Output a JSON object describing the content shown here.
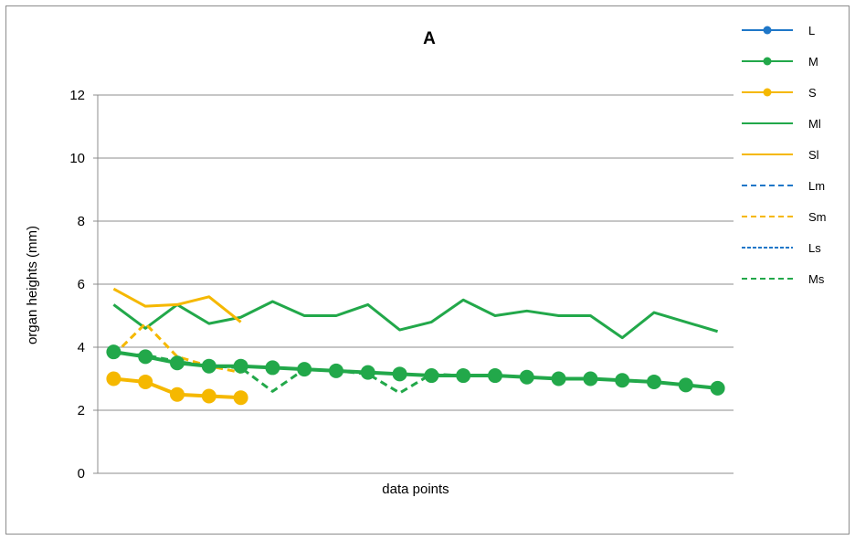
{
  "chart_data": {
    "type": "line",
    "title": "A",
    "xlabel": "data points",
    "ylabel": "organ heights (mm)",
    "ylim": [
      0,
      12
    ],
    "yticks": [
      0,
      2,
      4,
      6,
      8,
      10,
      12
    ],
    "y_tick_labels": [
      "0",
      "2",
      "4",
      "6",
      "8",
      "10",
      "12"
    ],
    "x_count": 20,
    "grid": "horizontal",
    "legend_position": "right",
    "series": [
      {
        "name": "L",
        "color": "#1f77c8",
        "style": "solid-marker",
        "values": []
      },
      {
        "name": "M",
        "color": "#22a84a",
        "style": "solid-marker",
        "values": [
          3.85,
          3.7,
          3.5,
          3.4,
          3.4,
          3.35,
          3.3,
          3.25,
          3.2,
          3.15,
          3.1,
          3.1,
          3.1,
          3.05,
          3.0,
          3.0,
          2.95,
          2.9,
          2.8,
          2.7
        ]
      },
      {
        "name": "S",
        "color": "#f5b800",
        "style": "solid-marker",
        "values": [
          3.0,
          2.9,
          2.5,
          2.45,
          2.4
        ]
      },
      {
        "name": "Ml",
        "color": "#22a84a",
        "style": "solid",
        "values": [
          5.35,
          4.6,
          5.35,
          4.75,
          4.95,
          5.45,
          5.0,
          5.0,
          5.35,
          4.55,
          4.8,
          5.5,
          5.0,
          5.15,
          5.0,
          5.0,
          4.3,
          5.1,
          4.8,
          4.5
        ]
      },
      {
        "name": "Sl",
        "color": "#f5b800",
        "style": "solid",
        "values": [
          5.85,
          5.3,
          5.35,
          5.6,
          4.8
        ]
      },
      {
        "name": "Lm",
        "color": "#1f77c8",
        "style": "dashed",
        "values": []
      },
      {
        "name": "Sm",
        "color": "#f5b800",
        "style": "dashed",
        "values": [
          3.75,
          4.75,
          3.7,
          3.4,
          3.2
        ]
      },
      {
        "name": "Ls",
        "color": "#1f77c8",
        "style": "dotted",
        "values": []
      },
      {
        "name": "Ms",
        "color": "#22a84a",
        "style": "dashed",
        "values": [
          3.8,
          3.75,
          3.55,
          3.4,
          3.35,
          2.6,
          3.3,
          3.25,
          3.15,
          2.55,
          3.15,
          3.1,
          3.1,
          3.05,
          3.0,
          3.0,
          2.95,
          2.9,
          2.8,
          2.7
        ]
      }
    ]
  }
}
